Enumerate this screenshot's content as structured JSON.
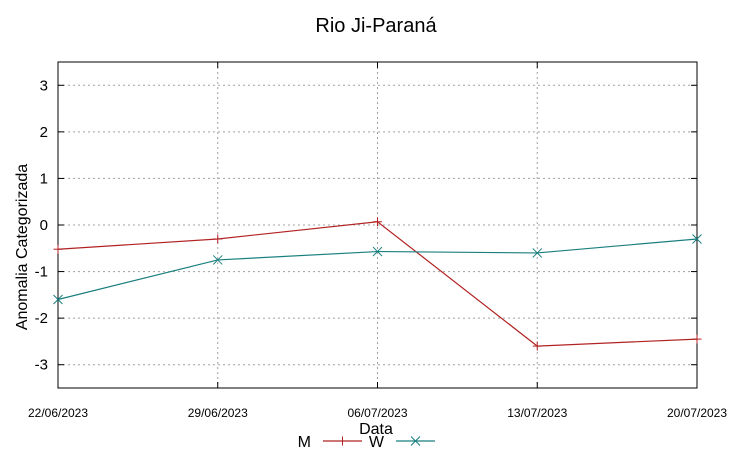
{
  "chart_data": {
    "type": "line",
    "title": "Rio Ji-Paraná",
    "xlabel": "Data",
    "ylabel": "Anomalia Categorizada",
    "categories": [
      "22/06/2023",
      "29/06/2023",
      "06/07/2023",
      "13/07/2023",
      "20/07/2023"
    ],
    "ylim": [
      -3.5,
      3.5
    ],
    "yticks": [
      -3,
      -2,
      -1,
      0,
      1,
      2,
      3
    ],
    "grid": true,
    "legend_position": "bottom-center",
    "series": [
      {
        "name": "M",
        "color": "#b22222",
        "marker": "plus",
        "values": [
          -0.52,
          -0.3,
          0.07,
          -2.6,
          -2.45
        ]
      },
      {
        "name": "W",
        "color": "#1a7f7f",
        "marker": "cross",
        "values": [
          -1.6,
          -0.75,
          -0.57,
          -0.6,
          -0.3
        ]
      }
    ]
  }
}
